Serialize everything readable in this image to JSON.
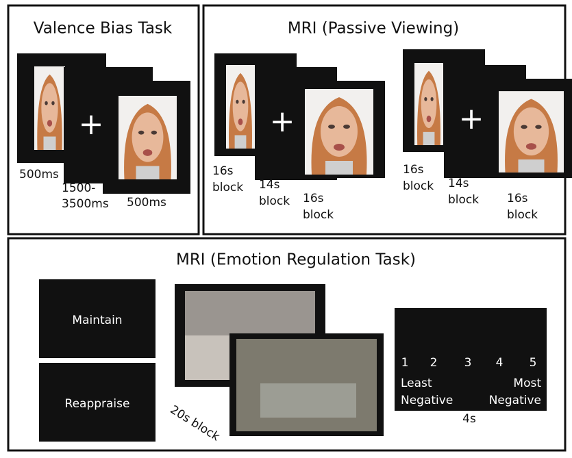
{
  "panels": [
    {
      "title": "Valence Bias Task",
      "labels": [
        [
          "500ms"
        ],
        [
          "1500-",
          "3500ms"
        ],
        [
          "500ms"
        ]
      ]
    },
    {
      "title": "MRI (Passive Viewing)",
      "labels": [
        [
          "16s",
          "block"
        ],
        [
          "14s",
          "block"
        ],
        [
          "16s",
          "block"
        ],
        [
          "16s",
          "block"
        ],
        [
          "14s",
          "block"
        ],
        [
          "16s",
          "block"
        ]
      ]
    },
    {
      "title": "MRI (Emotion Regulation Task)",
      "instructions": [
        "Maintain",
        "Reappraise"
      ],
      "block_label": "20s block",
      "scale": {
        "numbers": [
          "1",
          "2",
          "3",
          "4",
          "5"
        ],
        "low": [
          "Least",
          "Negative"
        ],
        "high": [
          "Most",
          "Negative"
        ],
        "duration": "4s"
      }
    }
  ]
}
